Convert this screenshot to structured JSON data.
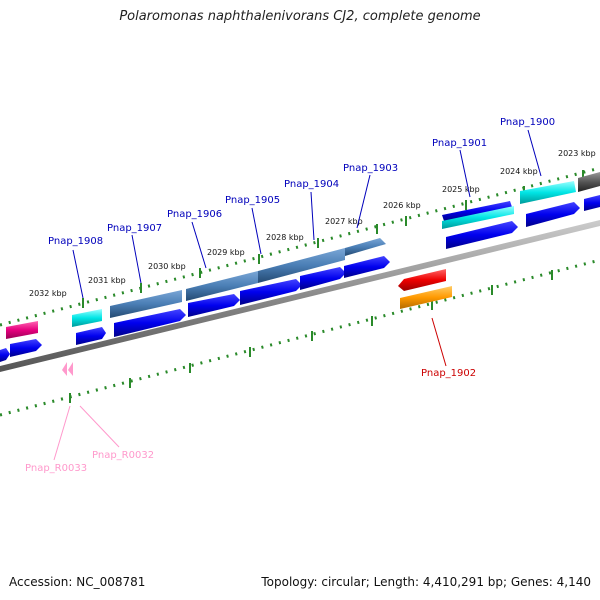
{
  "title": "Polaromonas naphthalenivorans CJ2, complete genome",
  "footer": {
    "accession": "Accession: NC_008781",
    "summary": "Topology: circular; Length: 4,410,291 bp; Genes: 4,140"
  },
  "ticks": [
    "2032 kbp",
    "2031 kbp",
    "2030 kbp",
    "2029 kbp",
    "2028 kbp",
    "2027 kbp",
    "2026 kbp",
    "2025 kbp",
    "2024 kbp",
    "2023 kbp"
  ],
  "genes": [
    "Pnap_1908",
    "Pnap_1907",
    "Pnap_1906",
    "Pnap_1905",
    "Pnap_1904",
    "Pnap_1903",
    "Pnap_1901",
    "Pnap_1900",
    "Pnap_1902"
  ],
  "rnas": [
    "Pnap_R0033",
    "Pnap_R0032"
  ],
  "colors": {
    "gene_label": "#0000bb",
    "rrna_label": "#ff99cc",
    "red_label": "#cc0000",
    "backbone": "#8a8a8a",
    "tick": "#2a8a2a",
    "blue": "#0000ee",
    "steel": "#4a7eb5",
    "cyan": "#00e5e5",
    "magenta": "#e6007e",
    "red": "#ee0000",
    "orange": "#ff9900",
    "gray": "#555555"
  }
}
